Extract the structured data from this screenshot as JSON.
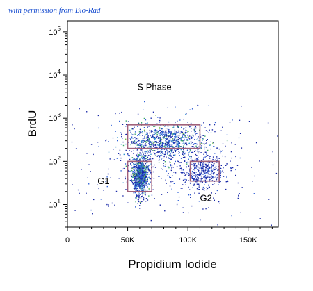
{
  "credit": "with permission from Bio-Rad",
  "chart_data": {
    "type": "scatter",
    "xlabel": "Propidium Iodide",
    "ylabel": "BrdU",
    "xlim": [
      0,
      175000
    ],
    "ylim": [
      3,
      180000
    ],
    "yscale": "log",
    "x_ticks": [
      0,
      50000,
      100000,
      150000
    ],
    "x_tick_labels": [
      "0",
      "50K",
      "100K",
      "150K"
    ],
    "y_ticks": [
      10,
      100,
      1000,
      10000,
      100000
    ],
    "y_tick_labels": [
      {
        "base": "10",
        "exp": "1"
      },
      {
        "base": "10",
        "exp": "2"
      },
      {
        "base": "10",
        "exp": "3"
      },
      {
        "base": "10",
        "exp": "4"
      },
      {
        "base": "10",
        "exp": "5"
      }
    ],
    "grid": false,
    "gates": [
      {
        "name": "S Phase",
        "x": [
          50000,
          110000
        ],
        "y": [
          200,
          700
        ],
        "label_x": 58000,
        "label_y": 4500
      },
      {
        "name": "G1",
        "x": [
          50000,
          70000
        ],
        "y": [
          20,
          100
        ],
        "label_x": 25000,
        "label_y": 30
      },
      {
        "name": "G2",
        "x": [
          102000,
          126000
        ],
        "y": [
          35,
          100
        ],
        "label_x": 110000,
        "label_y": 12
      }
    ],
    "gate_color": "#a0607a",
    "point_colors": [
      "#1a2aa8",
      "#2d5fd6",
      "#2e8fd0",
      "#3aa86a",
      "#74c24a"
    ],
    "populations": [
      {
        "center": [
          60000,
          50
        ],
        "spread": [
          3500,
          0.22
        ],
        "density": "high"
      },
      {
        "center": [
          82000,
          300
        ],
        "spread": [
          16000,
          0.22
        ],
        "density": "high"
      },
      {
        "center": [
          112000,
          60
        ],
        "spread": [
          8000,
          0.2
        ],
        "density": "medium"
      },
      {
        "center": [
          90000,
          80
        ],
        "spread": [
          40000,
          0.6
        ],
        "density": "low"
      }
    ]
  }
}
